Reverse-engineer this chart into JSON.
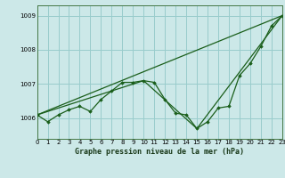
{
  "background_color": "#cce8e8",
  "grid_color": "#99cccc",
  "line_color": "#1a5e1a",
  "xlabel": "Graphe pression niveau de la mer (hPa)",
  "ylim": [
    1005.4,
    1009.3
  ],
  "xlim": [
    0,
    23
  ],
  "yticks": [
    1006,
    1007,
    1008,
    1009
  ],
  "xticks": [
    0,
    1,
    2,
    3,
    4,
    5,
    6,
    7,
    8,
    9,
    10,
    11,
    12,
    13,
    14,
    15,
    16,
    17,
    18,
    19,
    20,
    21,
    22,
    23
  ],
  "series_zigzag": {
    "x": [
      0,
      1,
      2,
      3,
      4,
      5,
      6,
      7,
      8,
      9,
      10,
      11,
      12,
      13,
      14,
      15,
      16,
      17,
      18,
      19,
      20,
      21,
      22,
      23
    ],
    "y": [
      1006.1,
      1005.9,
      1006.1,
      1006.25,
      1006.35,
      1006.2,
      1006.55,
      1006.8,
      1007.05,
      1007.05,
      1007.1,
      1007.05,
      1006.55,
      1006.15,
      1006.1,
      1005.7,
      1005.9,
      1006.3,
      1006.35,
      1007.25,
      1007.6,
      1008.1,
      1008.7,
      1009.0
    ]
  },
  "series_straight": {
    "x": [
      0,
      23
    ],
    "y": [
      1006.1,
      1009.0
    ]
  },
  "series_triangle": {
    "x": [
      0,
      10,
      15,
      23
    ],
    "y": [
      1006.1,
      1007.1,
      1005.7,
      1009.0
    ]
  }
}
